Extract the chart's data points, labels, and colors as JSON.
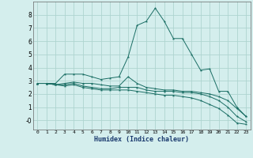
{
  "xlabel": "Humidex (Indice chaleur)",
  "background_color": "#d4eeed",
  "grid_color": "#aed4d0",
  "line_color": "#1a6e64",
  "xlim": [
    -0.5,
    23.5
  ],
  "ylim": [
    -0.7,
    9.0
  ],
  "yticks": [
    0,
    1,
    2,
    3,
    4,
    5,
    6,
    7,
    8
  ],
  "ytick_labels": [
    "-0",
    "1",
    "2",
    "3",
    "4",
    "5",
    "6",
    "7",
    "8"
  ],
  "xticks": [
    0,
    1,
    2,
    3,
    4,
    5,
    6,
    7,
    8,
    9,
    10,
    11,
    12,
    13,
    14,
    15,
    16,
    17,
    18,
    19,
    20,
    21,
    22,
    23
  ],
  "xtick_labels": [
    "0",
    "1",
    "2",
    "3",
    "4",
    "5",
    "6",
    "7",
    "8",
    "9",
    "10",
    "11",
    "12",
    "13",
    "14",
    "15",
    "16",
    "17",
    "18",
    "19",
    "20",
    "21",
    "22",
    "23"
  ],
  "series": [
    [
      2.8,
      2.8,
      2.8,
      3.5,
      3.5,
      3.5,
      3.3,
      3.1,
      3.2,
      3.3,
      4.8,
      7.2,
      7.5,
      8.5,
      7.5,
      6.2,
      6.2,
      5.0,
      3.8,
      3.9,
      2.2,
      2.2,
      1.0,
      0.3
    ],
    [
      2.8,
      2.8,
      2.7,
      2.8,
      2.9,
      2.8,
      2.8,
      2.7,
      2.6,
      2.6,
      3.3,
      2.8,
      2.5,
      2.4,
      2.3,
      2.3,
      2.2,
      2.2,
      2.1,
      2.0,
      1.8,
      1.5,
      0.9,
      0.3
    ],
    [
      2.8,
      2.8,
      2.7,
      2.7,
      2.8,
      2.6,
      2.5,
      2.4,
      2.4,
      2.5,
      2.5,
      2.5,
      2.3,
      2.2,
      2.2,
      2.2,
      2.1,
      2.1,
      2.0,
      1.8,
      1.5,
      1.0,
      0.3,
      -0.1
    ],
    [
      2.8,
      2.8,
      2.7,
      2.6,
      2.7,
      2.5,
      2.4,
      2.3,
      2.3,
      2.3,
      2.3,
      2.2,
      2.1,
      2.0,
      1.9,
      1.9,
      1.8,
      1.7,
      1.5,
      1.2,
      0.9,
      0.4,
      -0.2,
      -0.3
    ]
  ]
}
